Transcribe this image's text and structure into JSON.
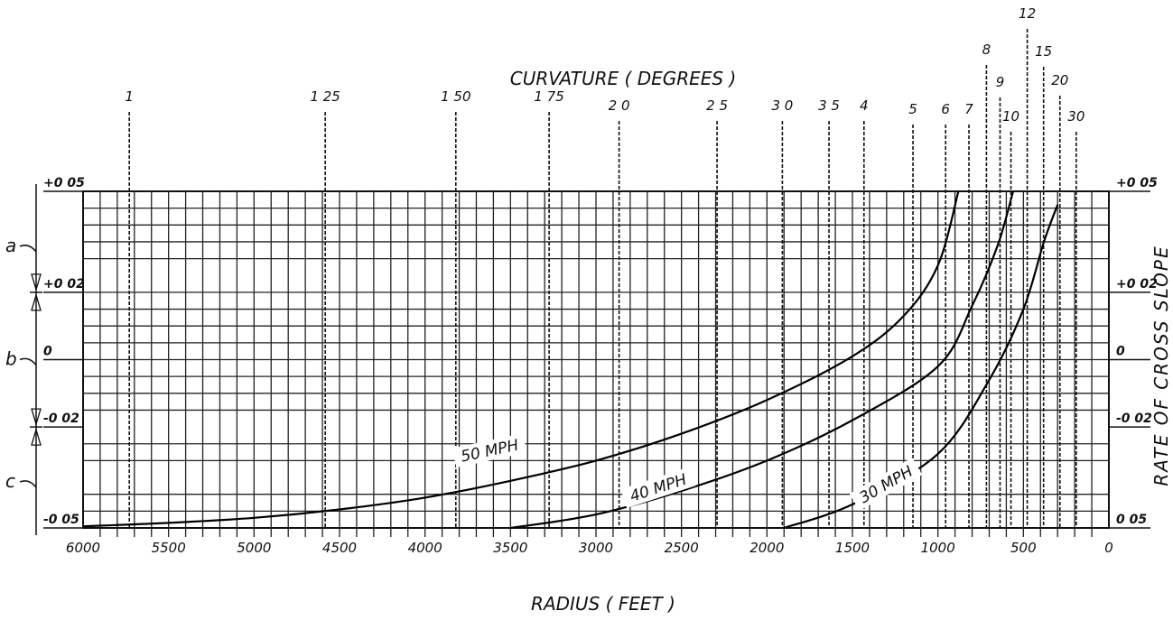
{
  "chart_data": {
    "type": "line",
    "title": "CURVATURE ( DEGREES )",
    "xlabel": "RADIUS ( FEET )",
    "ylabel": "RATE OF CROSS SLOPE",
    "x_reversed": true,
    "xlim": [
      0,
      6000
    ],
    "ylim": [
      -0.05,
      0.05
    ],
    "x_ticks": [
      {
        "value": 6000,
        "label": "6000"
      },
      {
        "value": 5500,
        "label": "5500"
      },
      {
        "value": 5000,
        "label": "5000"
      },
      {
        "value": 4500,
        "label": "4500"
      },
      {
        "value": 4000,
        "label": "4000"
      },
      {
        "value": 3500,
        "label": "3500"
      },
      {
        "value": 3000,
        "label": "3000"
      },
      {
        "value": 2500,
        "label": "2500"
      },
      {
        "value": 2000,
        "label": "2000"
      },
      {
        "value": 1500,
        "label": "1500"
      },
      {
        "value": 1000,
        "label": "1000"
      },
      {
        "value": 500,
        "label": "500"
      },
      {
        "value": 0,
        "label": "0"
      }
    ],
    "left_y_labels": [
      {
        "value": 0.05,
        "label": "+0 05"
      },
      {
        "value": 0.02,
        "label": "+0 02"
      },
      {
        "value": 0,
        "label": "0"
      },
      {
        "value": -0.02,
        "label": "-0 02"
      },
      {
        "value": -0.05,
        "label": "-0 05"
      }
    ],
    "right_y_labels": [
      {
        "value": 0.05,
        "label": "+0 05"
      },
      {
        "value": 0.02,
        "label": "+0 02"
      },
      {
        "value": 0,
        "label": "0"
      },
      {
        "value": -0.02,
        "label": "-0 02"
      },
      {
        "value": -0.05,
        "label": "0 05"
      }
    ],
    "curvature_scale": [
      {
        "label": "1",
        "degrees": 1
      },
      {
        "label": "1 25",
        "degrees": 1.25
      },
      {
        "label": "1 50",
        "degrees": 1.5
      },
      {
        "label": "1 75",
        "degrees": 1.75
      },
      {
        "label": "2 0",
        "degrees": 2.0
      },
      {
        "label": "2 5",
        "degrees": 2.5
      },
      {
        "label": "3 0",
        "degrees": 3.0
      },
      {
        "label": "3 5",
        "degrees": 3.5
      },
      {
        "label": "4",
        "degrees": 4
      },
      {
        "label": "5",
        "degrees": 5
      },
      {
        "label": "6",
        "degrees": 6
      },
      {
        "label": "7",
        "degrees": 7
      },
      {
        "label": "8",
        "degrees": 8
      },
      {
        "label": "9",
        "degrees": 9
      },
      {
        "label": "10",
        "degrees": 10
      },
      {
        "label": "12",
        "degrees": 12
      },
      {
        "label": "15",
        "degrees": 15
      },
      {
        "label": "20",
        "degrees": 20
      },
      {
        "label": "30",
        "degrees": 30
      }
    ],
    "regions": [
      "a",
      "b",
      "c"
    ],
    "series": [
      {
        "name": "50 MPH",
        "points": [
          [
            6000,
            -0.0495
          ],
          [
            5500,
            -0.0485
          ],
          [
            5000,
            -0.047
          ],
          [
            4500,
            -0.0445
          ],
          [
            4000,
            -0.041
          ],
          [
            3500,
            -0.036
          ],
          [
            3000,
            -0.03
          ],
          [
            2500,
            -0.022
          ],
          [
            2000,
            -0.012
          ],
          [
            1500,
            0.001
          ],
          [
            1200,
            0.013
          ],
          [
            1000,
            0.028
          ],
          [
            880,
            0.05
          ]
        ]
      },
      {
        "name": "40 MPH",
        "points": [
          [
            3500,
            -0.05
          ],
          [
            3000,
            -0.046
          ],
          [
            2500,
            -0.039
          ],
          [
            2000,
            -0.03
          ],
          [
            1500,
            -0.018
          ],
          [
            1000,
            -0.002
          ],
          [
            800,
            0.016
          ],
          [
            650,
            0.034
          ],
          [
            560,
            0.05
          ]
        ]
      },
      {
        "name": "30 MPH",
        "points": [
          [
            1900,
            -0.05
          ],
          [
            1500,
            -0.043
          ],
          [
            1000,
            -0.028
          ],
          [
            700,
            -0.006
          ],
          [
            500,
            0.015
          ],
          [
            380,
            0.035
          ],
          [
            300,
            0.046
          ]
        ]
      }
    ]
  }
}
